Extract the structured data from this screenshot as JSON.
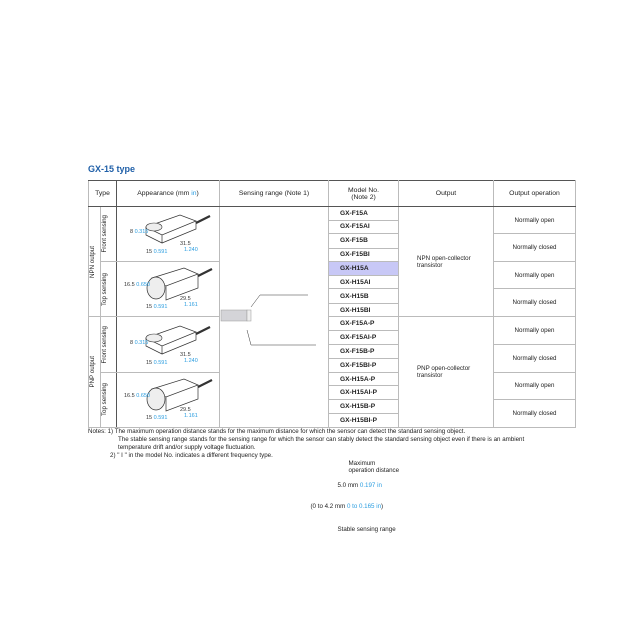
{
  "title": "GX-15 type",
  "headers": {
    "type": "Type",
    "appearance": "Appearance (mm ",
    "appearance_unit": "in",
    "appearance_close": ")",
    "sensing": "Sensing range (Note 1)",
    "model1": "Model No.",
    "model2": "(Note 2)",
    "output": "Output",
    "operation": "Output operation"
  },
  "groups": [
    {
      "output": "NPN output",
      "output_type": "NPN open-collector transistor",
      "sub": [
        {
          "label": "Front sensing"
        },
        {
          "label": "Top sensing"
        }
      ]
    },
    {
      "output": "PNP output",
      "output_type": "PNP open-collector transistor",
      "sub": [
        {
          "label": "Front sensing"
        },
        {
          "label": "Top sensing"
        }
      ]
    }
  ],
  "dims": {
    "front": {
      "h_mm": "8",
      "h_in": "0.315",
      "w_mm": "15",
      "w_in": "0.591",
      "l_mm": "31.5",
      "l_in": "1.240"
    },
    "top": {
      "h_mm": "16.5",
      "h_in": "0.650",
      "w_mm": "15",
      "w_in": "0.591",
      "l_mm": "29.5",
      "l_in": "1.161"
    }
  },
  "sensing": {
    "max_label1": "Maximum",
    "max_label2": "operation distance",
    "max_mm": "5.0 mm",
    "max_in": "0.197 in",
    "stable_open": "(0 to 4.2 mm ",
    "stable_in": "0 to 0.165 in",
    "stable_close": ")",
    "stable_label": "Stable sensing range"
  },
  "models": [
    "GX-F15A",
    "GX-F15AI",
    "GX-F15B",
    "GX-F15BI",
    "GX-H15A",
    "GX-H15AI",
    "GX-H15B",
    "GX-H15BI",
    "GX-F15A-P",
    "GX-F15AI-P",
    "GX-F15B-P",
    "GX-F15BI-P",
    "GX-H15A-P",
    "GX-H15AI-P",
    "GX-H15B-P",
    "GX-H15BI-P"
  ],
  "highlighted_model": "GX-H15A",
  "operations": [
    "Normally open",
    "Normally closed",
    "Normally open",
    "Normally closed",
    "Normally open",
    "Normally closed",
    "Normally open",
    "Normally closed"
  ],
  "notes": [
    "Notes: 1) The maximum operation distance stands for the maximum distance for which the sensor can detect the standard sensing object.",
    "The stable sensing range stands for the sensing range for which the sensor can stably detect the standard sensing object even if there is an ambient",
    "temperature drift and/or supply voltage fluctuation.",
    "2) \" I \" in the model No. indicates a different frequency type."
  ],
  "colors": {
    "title": "#1f5fa8",
    "inch": "#2a9de0",
    "highlight": "#c8c8f6"
  }
}
